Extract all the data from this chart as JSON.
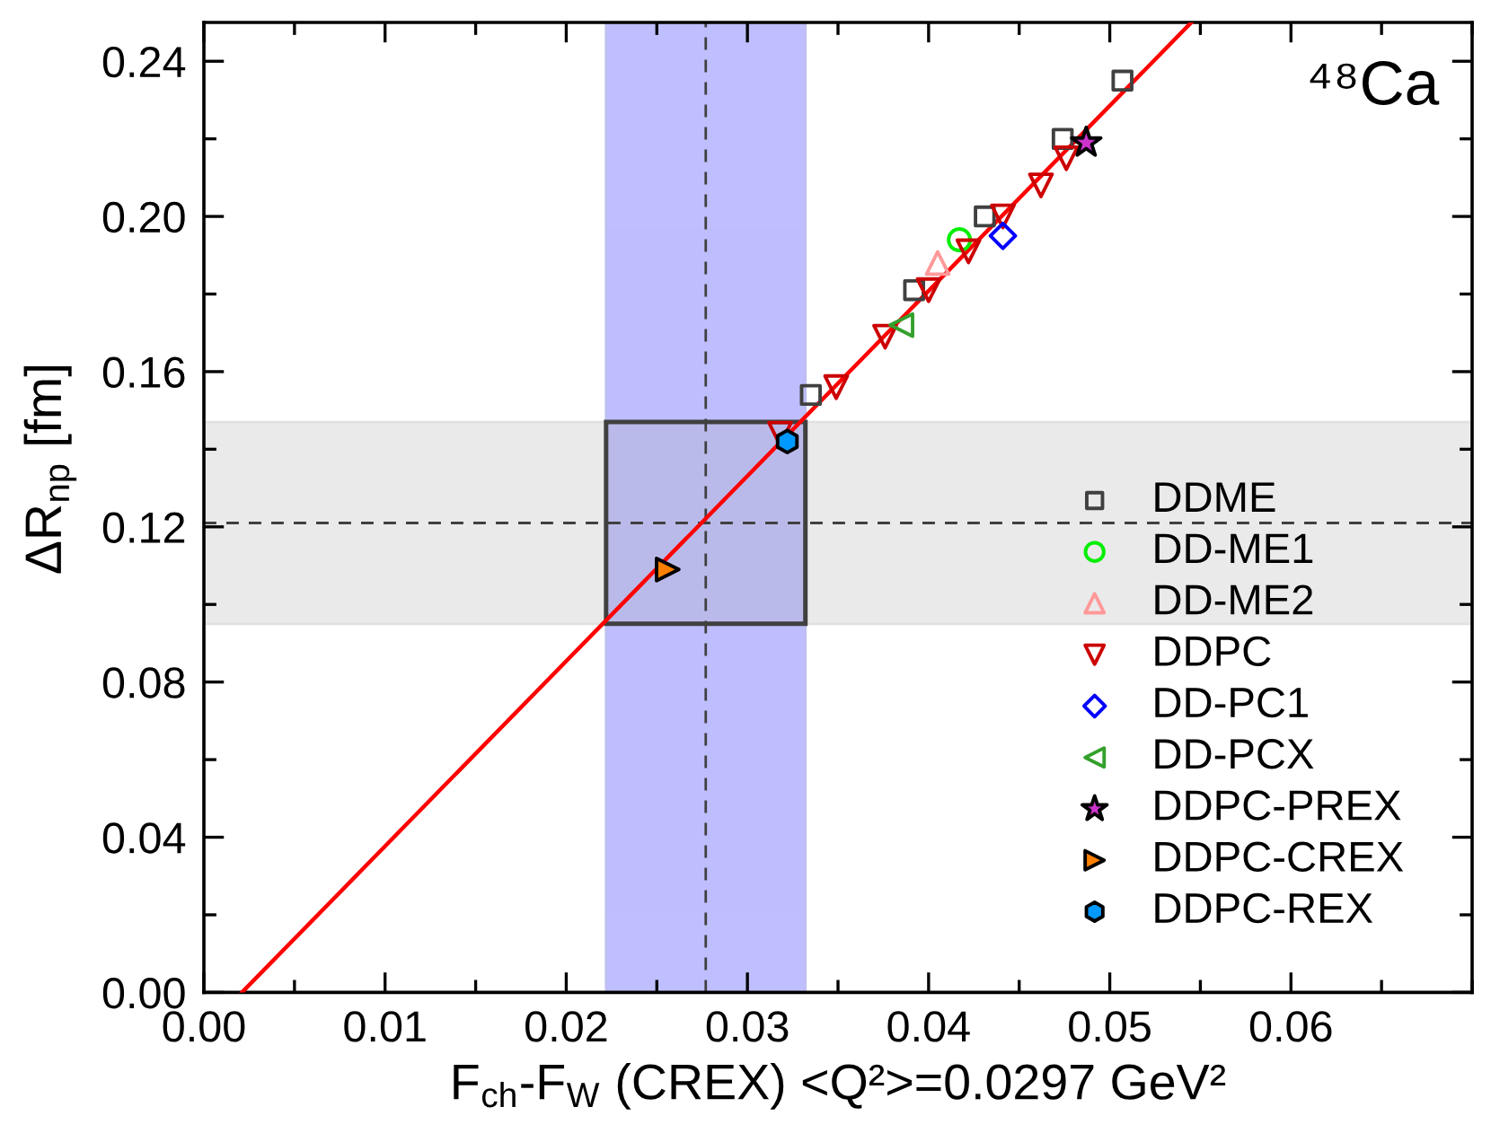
{
  "chart_data": {
    "type": "scatter",
    "xlabel": "F$_{ch}$-F$_{W}$ (CREX) <Q²>=0.0297 GeV²",
    "ylabel": "ΔR$_{np}$ [fm]",
    "annotations": [
      "⁴⁸Ca"
    ],
    "xlim": [
      0,
      0.07
    ],
    "xticks": [
      {
        "value": 0,
        "label": "0.00"
      },
      {
        "value": 0.01,
        "label": "0.01"
      },
      {
        "value": 0.02,
        "label": "0.02"
      },
      {
        "value": 0.03,
        "label": "0.03"
      },
      {
        "value": 0.04,
        "label": "0.04"
      },
      {
        "value": 0.05,
        "label": "0.05"
      },
      {
        "value": 0.06,
        "label": "0.06"
      }
    ],
    "ylim": [
      0,
      0.25
    ],
    "yticks": [
      {
        "value": 0,
        "label": "0.00"
      },
      {
        "value": 0.04,
        "label": "0.04"
      },
      {
        "value": 0.08,
        "label": "0.08"
      },
      {
        "value": 0.12,
        "label": "0.12"
      },
      {
        "value": 0.16,
        "label": "0.16"
      },
      {
        "value": 0.2,
        "label": "0.20"
      },
      {
        "value": 0.24,
        "label": "0.24"
      }
    ],
    "bands": [
      {
        "axis": "x",
        "from": 0.0222,
        "to": 0.0332,
        "color": "#bfbfff"
      },
      {
        "axis": "y",
        "from": 0.095,
        "to": 0.147,
        "color": "#ebebeb"
      }
    ],
    "ref_lines": [
      {
        "axis": "x",
        "value": 0.0277,
        "color": "#404040",
        "line_style": "dashed"
      },
      {
        "axis": "y",
        "value": 0.121,
        "color": "#404040",
        "line_style": "dashed"
      }
    ],
    "legend": "lower right",
    "grid": false,
    "series": [
      {
        "type": "line",
        "color": "#ff0000",
        "marker": "none",
        "line_style": "solid",
        "x": [
          0.0021,
          0.0545
        ],
        "values": [
          0,
          0.25
        ]
      },
      {
        "name": "DDME",
        "color": "#404040",
        "marker": "square",
        "x": [
          0.0335,
          0.0392,
          0.0431,
          0.0474,
          0.0507
        ],
        "values": [
          0.154,
          0.181,
          0.2,
          0.22,
          0.235
        ]
      },
      {
        "name": "DD-ME1",
        "color": "#00ee00",
        "marker": "circle",
        "x": [
          0.0417
        ],
        "values": [
          0.194
        ]
      },
      {
        "name": "DD-ME2",
        "color": "#ff9999",
        "marker": "triangle",
        "x": [
          0.0405
        ],
        "values": [
          0.188
        ]
      },
      {
        "name": "DDPC",
        "color": "#cc0000",
        "marker": "triangle_down",
        "x": [
          0.0318,
          0.0349,
          0.0376,
          0.04,
          0.0422,
          0.0441,
          0.0462,
          0.0476
        ],
        "values": [
          0.144,
          0.156,
          0.169,
          0.181,
          0.191,
          0.2,
          0.208,
          0.215
        ]
      },
      {
        "name": "DD-PC1",
        "color": "#0000ff",
        "marker": "diamond",
        "x": [
          0.0441
        ],
        "values": [
          0.195
        ]
      },
      {
        "name": "DD-PCX",
        "color": "#33a02c",
        "marker": "triangle_left",
        "x": [
          0.0385
        ],
        "values": [
          0.172
        ]
      },
      {
        "name": "DDPC-PREX",
        "color": "#000000",
        "colors": [
          "#cc33cc"
        ],
        "marker": "star",
        "x": [
          0.0487
        ],
        "values": [
          0.219
        ]
      },
      {
        "name": "DDPC-CREX",
        "color": "#000000",
        "colors": [
          "#ff8000"
        ],
        "marker": "triangle_right",
        "x": [
          0.0256
        ],
        "values": [
          0.109
        ]
      },
      {
        "name": "DDPC-REX",
        "color": "#000000",
        "colors": [
          "#0099ff"
        ],
        "x": [
          0.0322
        ],
        "values": [
          0.142
        ]
      }
    ]
  }
}
